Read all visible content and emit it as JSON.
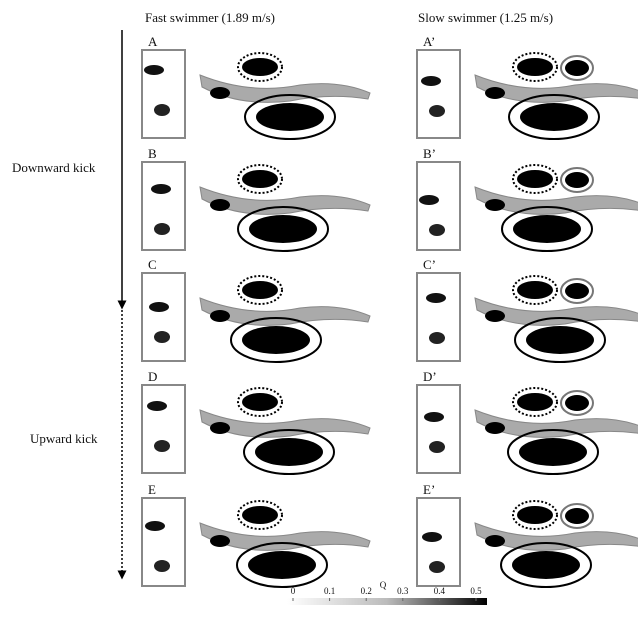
{
  "columns": [
    {
      "title": "Fast swimmer (1.89 m/s)",
      "panels": [
        "A",
        "B",
        "C",
        "D",
        "E"
      ]
    },
    {
      "title": "Slow swimmer (1.25 m/s)",
      "panels": [
        "A’",
        "B’",
        "C’",
        "D’",
        "E’"
      ]
    }
  ],
  "phases": [
    "Downward kick",
    "Upward kick"
  ],
  "colorbar": {
    "label": "Q",
    "ticks": [
      0,
      0.1,
      0.2,
      0.3,
      0.4,
      0.5
    ]
  }
}
